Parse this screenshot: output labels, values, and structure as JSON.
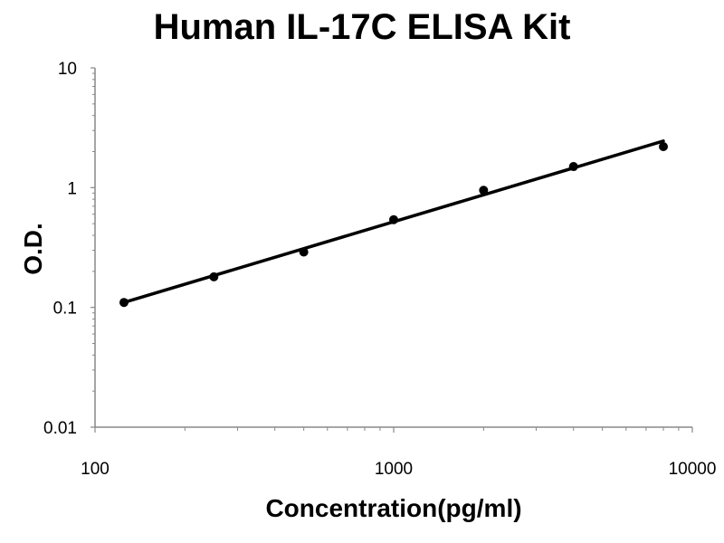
{
  "chart_data": {
    "type": "scatter",
    "title": "Human IL-17C ELISA Kit",
    "xlabel": "Concentration(pg/ml)",
    "ylabel": "O.D.",
    "xscale": "log",
    "yscale": "log",
    "xlim": [
      100,
      10000
    ],
    "ylim": [
      0.01,
      10
    ],
    "x_ticks": [
      "100",
      "1000",
      "10000"
    ],
    "y_ticks": [
      "0.01",
      "0.1",
      "1",
      "10"
    ],
    "grid": false,
    "legend": "none",
    "series": [
      {
        "x": [
          125,
          250,
          500,
          1000,
          2000,
          4000,
          8000
        ],
        "y": [
          0.11,
          0.18,
          0.29,
          0.54,
          0.95,
          1.5,
          2.2
        ]
      }
    ],
    "fit_line": {
      "x": [
        125,
        8000
      ],
      "y": [
        0.11,
        2.45
      ]
    },
    "colors": {
      "marker": "#000000",
      "line": "#000000"
    }
  }
}
